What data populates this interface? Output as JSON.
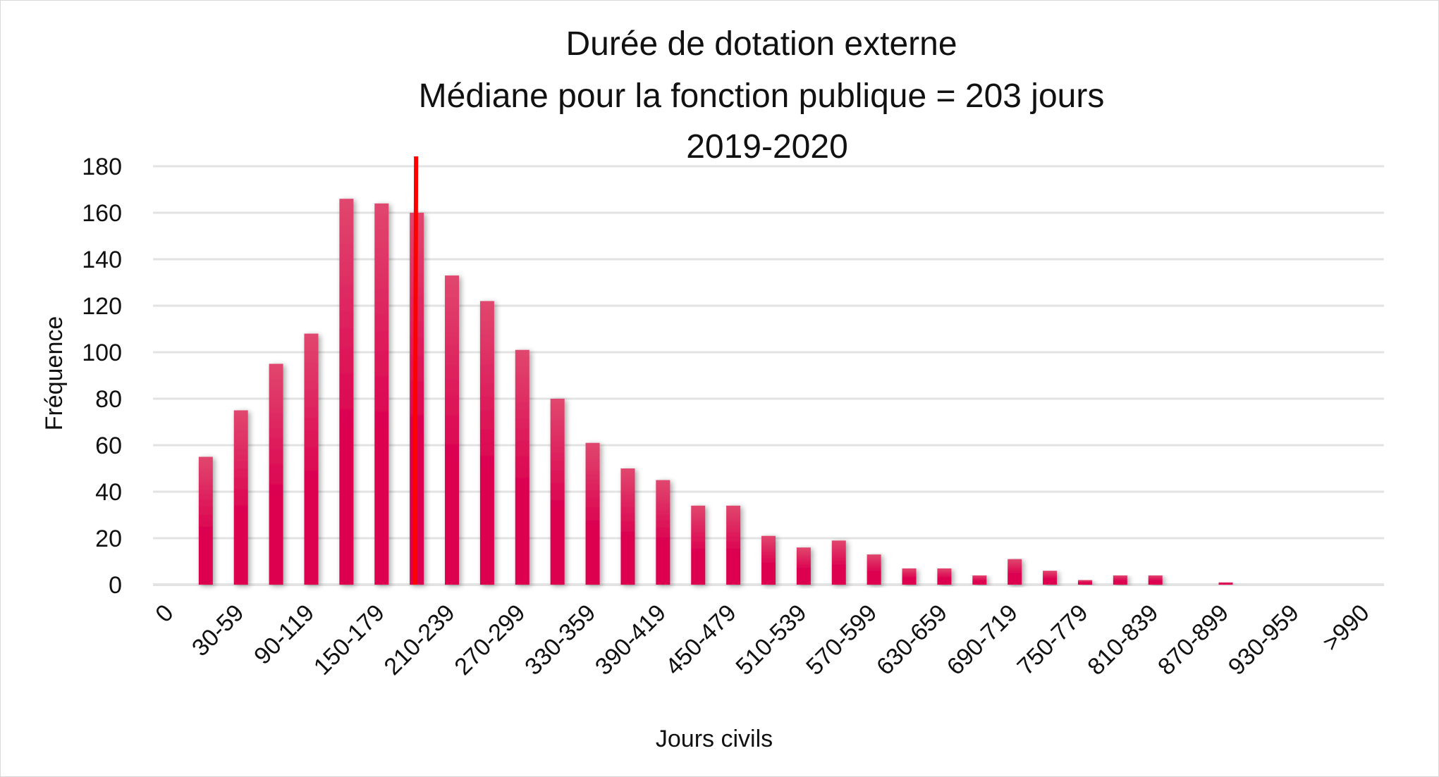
{
  "chart_data": {
    "type": "bar",
    "title": [
      "Durée de dotation externe",
      "Médiane pour la fonction publique = 203 jours",
      "2019-2020"
    ],
    "xlabel": "Jours civils",
    "ylabel": "Fréquence",
    "ylim": [
      0,
      180
    ],
    "yticks": [
      0,
      20,
      40,
      60,
      80,
      100,
      120,
      140,
      160,
      180
    ],
    "grid": true,
    "legend": "none",
    "x_tick_labels": [
      "0",
      "30-59",
      "90-119",
      "150-179",
      "210-239",
      "270-299",
      "330-359",
      "390-419",
      "450-479",
      "510-539",
      "570-599",
      "630-659",
      "690-719",
      "750-779",
      "810-839",
      "870-899",
      "930-959",
      ">990"
    ],
    "x_tick_label_every": 2,
    "values": [
      0,
      55,
      75,
      95,
      108,
      166,
      164,
      160,
      133,
      122,
      101,
      80,
      61,
      50,
      45,
      34,
      34,
      21,
      16,
      19,
      13,
      7,
      7,
      4,
      11,
      6,
      2,
      4,
      4,
      0,
      1,
      0,
      0,
      0,
      0
    ],
    "median_days": 203,
    "median_bin_index": 7,
    "colors": {
      "bar_top": "#e0476e",
      "bar_bottom": "#dc0050",
      "median_line": "#ff0000",
      "grid": "#e3e3e3"
    }
  }
}
